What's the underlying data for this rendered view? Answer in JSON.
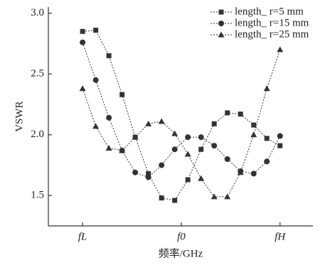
{
  "chart_data": {
    "type": "line",
    "x_label": "频率/GHz",
    "y_label": "VSWR",
    "x": [
      0,
      1,
      2,
      3,
      4,
      5,
      6,
      7,
      8,
      9,
      10,
      11,
      12,
      13,
      14,
      15
    ],
    "xlim": [
      -2.6,
      17.5
    ],
    "xticks": [
      {
        "value": 0,
        "label": "fL"
      },
      {
        "value": 7.5,
        "label": "f0"
      },
      {
        "value": 15,
        "label": "fH"
      }
    ],
    "ylim": [
      1.25,
      3.05
    ],
    "yticks": [
      1.5,
      {
        "value": 2,
        "label": "2.0"
      },
      2.5,
      {
        "value": 3,
        "label": "3.0"
      }
    ],
    "legend": "upper right",
    "series": [
      {
        "name": "length_ r=5 mm",
        "color": "#333333",
        "marker": "square",
        "values": [
          2.85,
          2.86,
          2.65,
          2.33,
          1.98,
          1.68,
          1.48,
          1.46,
          1.63,
          1.88,
          2.09,
          2.18,
          2.17,
          2.08,
          1.97,
          1.91
        ]
      },
      {
        "name": "length_ r=15 mm",
        "color": "#333333",
        "marker": "circle",
        "values": [
          2.76,
          2.45,
          2.14,
          1.87,
          1.69,
          1.65,
          1.75,
          1.88,
          1.98,
          1.98,
          1.91,
          1.8,
          1.7,
          1.68,
          1.78,
          1.99
        ]
      },
      {
        "name": "length_ r=25 mm",
        "color": "#333333",
        "marker": "triangle",
        "values": [
          2.38,
          2.07,
          1.89,
          1.87,
          1.98,
          2.09,
          2.11,
          2.01,
          1.84,
          1.64,
          1.49,
          1.49,
          1.69,
          2.0,
          2.38,
          2.7
        ]
      }
    ]
  }
}
